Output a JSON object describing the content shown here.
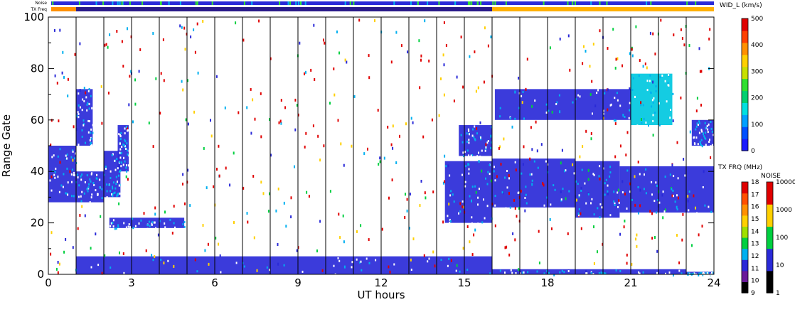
{
  "chart_data": {
    "type": "heatmap",
    "xlabel": "UT hours",
    "ylabel": "Range Gate",
    "xlim": [
      0,
      24
    ],
    "ylim": [
      0,
      100
    ],
    "x_ticks": [
      "0",
      "3",
      "6",
      "9",
      "12",
      "15",
      "18",
      "21",
      "24"
    ],
    "y_ticks": [
      "0",
      "20",
      "40",
      "60",
      "80",
      "100"
    ],
    "vertical_lines_at_hours": [
      1,
      2,
      3,
      4,
      5,
      6,
      7,
      8,
      9,
      10,
      11,
      12,
      13,
      14,
      15,
      16,
      17,
      18,
      19,
      20,
      21,
      22,
      23
    ],
    "top_bars": {
      "noise_label": "Noise",
      "txfreq_label": "TX Freq"
    },
    "colorbar_width": {
      "title": "WID_L (km/s)",
      "ticks": [
        "0",
        "100",
        "200",
        "300",
        "400",
        "500"
      ],
      "colors": [
        "#1a1aff",
        "#0050ff",
        "#00a0ff",
        "#00e0e0",
        "#00d070",
        "#30e030",
        "#c8e000",
        "#ffd000",
        "#ff9000",
        "#ff4000",
        "#e00000"
      ]
    },
    "colorbar_txfreq": {
      "title": "TX FRQ (MHz)",
      "ticks": [
        "9",
        "10",
        "11",
        "12",
        "13",
        "14",
        "15",
        "16",
        "17",
        "18"
      ],
      "colors": [
        "#000000",
        "#6a1a9a",
        "#2a2ad8",
        "#00b0f0",
        "#00d040",
        "#a0e000",
        "#ffd000",
        "#ff9000",
        "#ff5000",
        "#e00000"
      ]
    },
    "colorbar_noise": {
      "title": "NOISE",
      "ticks": [
        "1",
        "10",
        "100",
        "1000",
        "10000"
      ],
      "colors": [
        "#000000",
        "#2a2ad8",
        "#00d040",
        "#ffd000",
        "#e00000"
      ]
    },
    "echo_regions": [
      {
        "t0": 0.0,
        "t1": 1.0,
        "g0": 28,
        "g1": 50,
        "color": "#2a2ad8"
      },
      {
        "t0": 1.0,
        "t1": 1.6,
        "g0": 50,
        "g1": 72,
        "color": "#2a2ad8"
      },
      {
        "t0": 1.0,
        "t1": 2.0,
        "g0": 28,
        "g1": 40,
        "color": "#2a2ad8"
      },
      {
        "t0": 2.0,
        "t1": 2.6,
        "g0": 30,
        "g1": 48,
        "color": "#2a2ad8"
      },
      {
        "t0": 2.5,
        "t1": 2.9,
        "g0": 40,
        "g1": 58,
        "color": "#2a2ad8"
      },
      {
        "t0": 2.2,
        "t1": 4.9,
        "g0": 18,
        "g1": 22,
        "color": "#2a2ad8"
      },
      {
        "t0": 1.0,
        "t1": 16.0,
        "g0": 0,
        "g1": 7,
        "color": "#2a2ad8"
      },
      {
        "t0": 16.0,
        "t1": 23.0,
        "g0": 0,
        "g1": 2,
        "color": "#2a2ad8"
      },
      {
        "t0": 23.0,
        "t1": 24.0,
        "g0": 0,
        "g1": 1,
        "color": "#2a2ad8"
      },
      {
        "t0": 14.3,
        "t1": 16.0,
        "g0": 20,
        "g1": 44,
        "color": "#2a2ad8"
      },
      {
        "t0": 14.8,
        "t1": 16.0,
        "g0": 46,
        "g1": 58,
        "color": "#2a2ad8"
      },
      {
        "t0": 16.0,
        "t1": 19.0,
        "g0": 26,
        "g1": 45,
        "color": "#2a2ad8"
      },
      {
        "t0": 19.0,
        "t1": 20.6,
        "g0": 22,
        "g1": 44,
        "color": "#2a2ad8"
      },
      {
        "t0": 20.6,
        "t1": 24.0,
        "g0": 24,
        "g1": 42,
        "color": "#2a2ad8"
      },
      {
        "t0": 16.1,
        "t1": 21.0,
        "g0": 60,
        "g1": 72,
        "color": "#2a2ad8"
      },
      {
        "t0": 21.0,
        "t1": 22.5,
        "g0": 58,
        "g1": 78,
        "color": "#00c8e0"
      },
      {
        "t0": 23.2,
        "t1": 24.0,
        "g0": 50,
        "g1": 60,
        "color": "#2a2ad8"
      }
    ]
  }
}
